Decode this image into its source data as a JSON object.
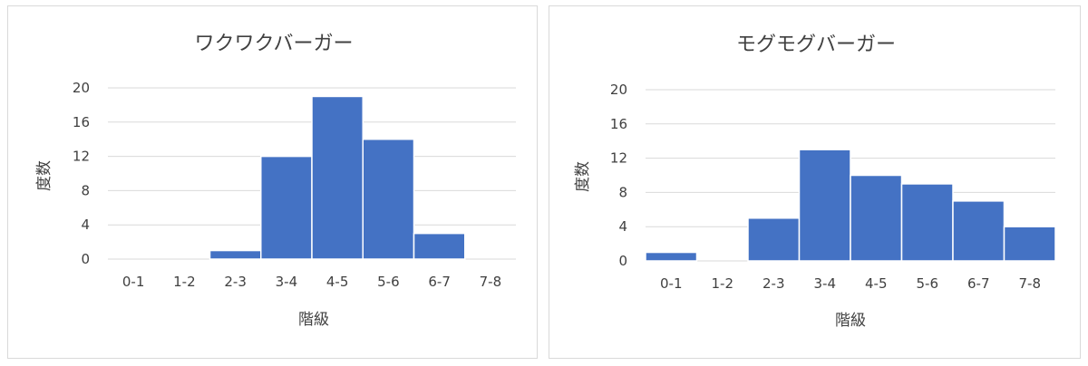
{
  "chart_data": [
    {
      "type": "bar",
      "title": "ワクワクバーガー",
      "xlabel": "階級",
      "ylabel": "度数",
      "categories": [
        "0-1",
        "1-2",
        "2-3",
        "3-4",
        "4-5",
        "5-6",
        "6-7",
        "7-8"
      ],
      "values": [
        0,
        0,
        1,
        12,
        19,
        14,
        3,
        0
      ],
      "ylim": [
        0,
        20
      ],
      "yticks": [
        "0",
        "4",
        "8",
        "12",
        "16",
        "20"
      ],
      "grid": true,
      "bar_color": "#4472c4"
    },
    {
      "type": "bar",
      "title": "モグモグバーガー",
      "xlabel": "階級",
      "ylabel": "度数",
      "categories": [
        "0-1",
        "1-2",
        "2-3",
        "3-4",
        "4-5",
        "5-6",
        "6-7",
        "7-8"
      ],
      "values": [
        1,
        0,
        5,
        13,
        10,
        9,
        7,
        4
      ],
      "ylim": [
        0,
        20
      ],
      "yticks": [
        "0",
        "4",
        "8",
        "12",
        "16",
        "20"
      ],
      "grid": true,
      "bar_color": "#4472c4"
    }
  ]
}
